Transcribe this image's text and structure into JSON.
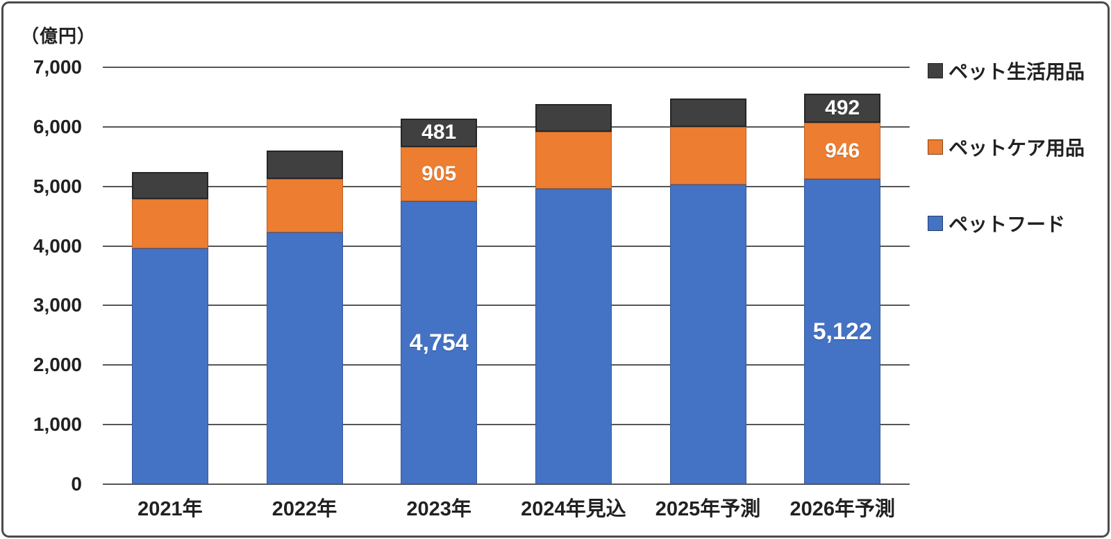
{
  "chart_data": {
    "type": "bar",
    "stacked": true,
    "unit_label": "（億円）",
    "ylim": [
      0,
      7000
    ],
    "ytick_step": 1000,
    "grid": true,
    "legend_position": "right",
    "gridline_color": "#555555",
    "text_color": "#212121",
    "label_color": "#ffffff",
    "yticks": [
      {
        "value": 7000,
        "label": "7,000"
      },
      {
        "value": 6000,
        "label": "6,000"
      },
      {
        "value": 5000,
        "label": "5,000"
      },
      {
        "value": 4000,
        "label": "4,000"
      },
      {
        "value": 3000,
        "label": "3,000"
      },
      {
        "value": 2000,
        "label": "2,000"
      },
      {
        "value": 1000,
        "label": "1,000"
      },
      {
        "value": 0,
        "label": "0"
      }
    ],
    "categories": [
      "2021年",
      "2022年",
      "2023年",
      "2024年見込",
      "2025年予測",
      "2026年予測"
    ],
    "series": [
      {
        "name": "ペットフード",
        "key": "food",
        "color": "#4472C4",
        "values": [
          3960,
          4230,
          4754,
          4960,
          5030,
          5122
        ],
        "labels": [
          "",
          "",
          "4,754",
          "",
          "",
          "5,122"
        ]
      },
      {
        "name": "ペットケア用品",
        "key": "care",
        "color": "#ED7D31",
        "values": [
          825,
          895,
          905,
          960,
          970,
          946
        ],
        "labels": [
          "",
          "",
          "905",
          "",
          "",
          "946"
        ]
      },
      {
        "name": "ペット生活用品",
        "key": "life",
        "color": "#404040",
        "values": [
          460,
          475,
          481,
          465,
          470,
          492
        ],
        "labels": [
          "",
          "",
          "481",
          "",
          "",
          "492"
        ]
      }
    ],
    "legend": [
      {
        "label": "ペット生活用品",
        "color": "#404040"
      },
      {
        "label": "ペットケア用品",
        "color": "#ED7D31"
      },
      {
        "label": "ペットフード",
        "color": "#4472C4"
      }
    ]
  }
}
